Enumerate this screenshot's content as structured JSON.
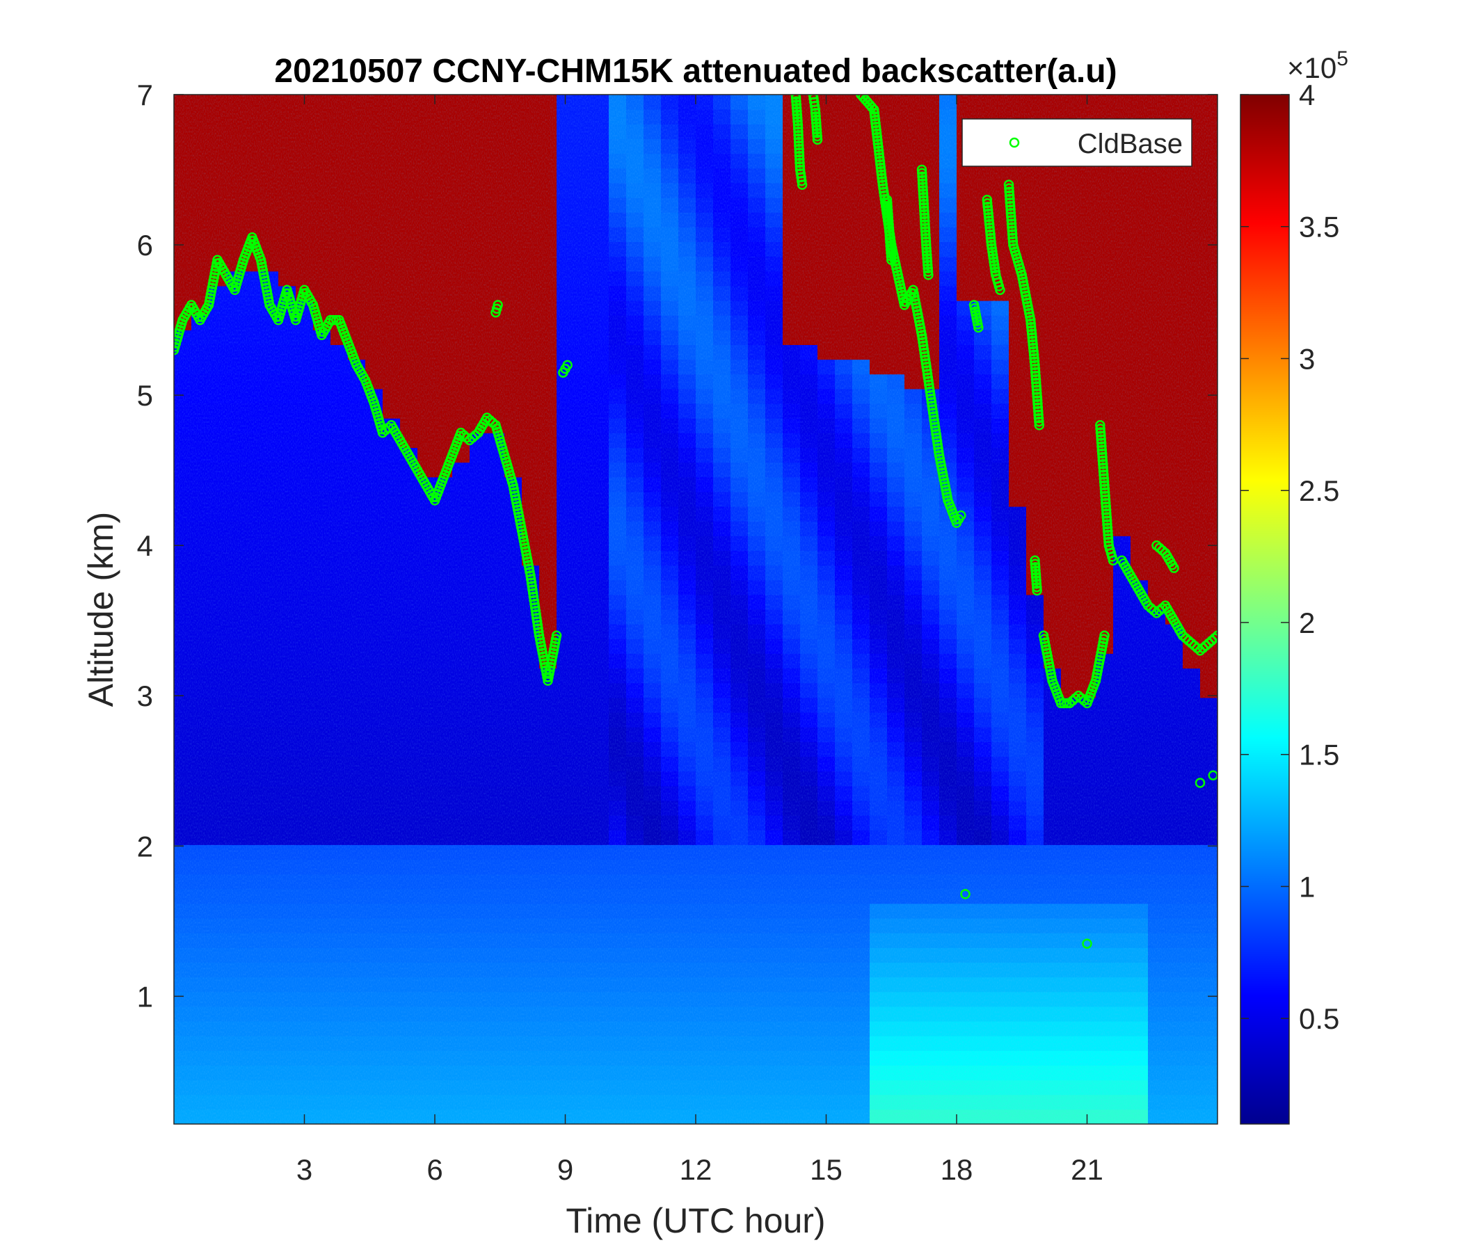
{
  "chart_data": {
    "type": "heatmap",
    "title": "20210507 CCNY-CHM15K attenuated backscatter(a.u)",
    "xlabel": "Time (UTC hour)",
    "ylabel": "Altitude (km)",
    "xlim": [
      0,
      24
    ],
    "ylim": [
      0.15,
      7
    ],
    "xticks": [
      3,
      6,
      9,
      12,
      15,
      18,
      21
    ],
    "yticks": [
      1,
      2,
      3,
      4,
      5,
      6,
      7
    ],
    "colorbar": {
      "colormap": "jet",
      "clim": [
        0.1,
        4
      ],
      "ticks": [
        0.5,
        1,
        1.5,
        2,
        2.5,
        3,
        3.5,
        4
      ],
      "multiplier_base": "×10",
      "multiplier_exponent": "5"
    },
    "legend": {
      "location": "top-right",
      "entries": [
        "CldBase"
      ]
    },
    "series": [
      {
        "name": "CldBase",
        "type": "scatter",
        "marker": "circle",
        "color": "#00ff00",
        "segments": [
          [
            [
              0.0,
              5.3
            ],
            [
              0.2,
              5.5
            ],
            [
              0.4,
              5.6
            ],
            [
              0.6,
              5.5
            ],
            [
              0.8,
              5.6
            ],
            [
              1.0,
              5.9
            ],
            [
              1.2,
              5.8
            ],
            [
              1.4,
              5.7
            ],
            [
              1.6,
              5.9
            ],
            [
              1.8,
              6.05
            ],
            [
              2.0,
              5.9
            ],
            [
              2.2,
              5.6
            ],
            [
              2.4,
              5.5
            ],
            [
              2.6,
              5.7
            ],
            [
              2.8,
              5.5
            ],
            [
              3.0,
              5.7
            ],
            [
              3.2,
              5.6
            ],
            [
              3.4,
              5.4
            ],
            [
              3.6,
              5.5
            ],
            [
              3.8,
              5.5
            ],
            [
              4.0,
              5.35
            ],
            [
              4.2,
              5.2
            ],
            [
              4.4,
              5.1
            ],
            [
              4.6,
              4.95
            ],
            [
              4.8,
              4.75
            ],
            [
              5.0,
              4.8
            ],
            [
              5.2,
              4.7
            ],
            [
              5.4,
              4.6
            ],
            [
              5.6,
              4.5
            ],
            [
              5.8,
              4.4
            ],
            [
              6.0,
              4.3
            ],
            [
              6.2,
              4.45
            ],
            [
              6.4,
              4.6
            ],
            [
              6.6,
              4.75
            ],
            [
              6.8,
              4.7
            ],
            [
              7.0,
              4.75
            ],
            [
              7.2,
              4.85
            ],
            [
              7.4,
              4.8
            ],
            [
              7.6,
              4.6
            ],
            [
              7.8,
              4.4
            ],
            [
              8.0,
              4.1
            ],
            [
              8.2,
              3.8
            ],
            [
              8.4,
              3.4
            ],
            [
              8.6,
              3.1
            ],
            [
              8.8,
              3.4
            ]
          ],
          [
            [
              8.95,
              5.15
            ],
            [
              9.05,
              5.2
            ]
          ],
          [
            [
              7.4,
              5.55
            ],
            [
              7.45,
              5.6
            ]
          ],
          [
            [
              14.3,
              7.0
            ],
            [
              14.35,
              6.8
            ],
            [
              14.4,
              6.5
            ],
            [
              14.45,
              6.4
            ]
          ],
          [
            [
              14.7,
              7.0
            ],
            [
              14.75,
              6.9
            ],
            [
              14.8,
              6.7
            ]
          ],
          [
            [
              15.8,
              7.0
            ],
            [
              16.1,
              6.9
            ],
            [
              16.3,
              6.4
            ],
            [
              16.5,
              6.0
            ],
            [
              16.8,
              5.6
            ],
            [
              17.0,
              5.7
            ],
            [
              17.2,
              5.4
            ],
            [
              17.4,
              5.0
            ],
            [
              17.6,
              4.6
            ],
            [
              17.8,
              4.3
            ],
            [
              18.0,
              4.15
            ],
            [
              18.1,
              4.2
            ]
          ],
          [
            [
              16.4,
              6.3
            ],
            [
              16.5,
              5.9
            ]
          ],
          [
            [
              17.2,
              6.5
            ],
            [
              17.3,
              6.0
            ],
            [
              17.35,
              5.8
            ]
          ],
          [
            [
              18.7,
              6.3
            ],
            [
              18.8,
              6.0
            ],
            [
              18.9,
              5.8
            ],
            [
              19.0,
              5.7
            ]
          ],
          [
            [
              19.2,
              6.4
            ],
            [
              19.3,
              6.0
            ],
            [
              19.5,
              5.8
            ],
            [
              19.7,
              5.5
            ],
            [
              19.8,
              5.2
            ],
            [
              19.9,
              4.8
            ]
          ],
          [
            [
              18.4,
              5.6
            ],
            [
              18.5,
              5.45
            ]
          ],
          [
            [
              19.8,
              3.9
            ],
            [
              19.85,
              3.7
            ]
          ],
          [
            [
              20.0,
              3.4
            ],
            [
              20.2,
              3.1
            ],
            [
              20.4,
              2.95
            ],
            [
              20.6,
              2.95
            ],
            [
              20.8,
              3.0
            ],
            [
              21.0,
              2.95
            ],
            [
              21.2,
              3.1
            ],
            [
              21.4,
              3.4
            ]
          ],
          [
            [
              21.3,
              4.8
            ],
            [
              21.4,
              4.4
            ],
            [
              21.5,
              4.0
            ],
            [
              21.6,
              3.9
            ]
          ],
          [
            [
              21.8,
              3.9
            ],
            [
              22.0,
              3.8
            ],
            [
              22.2,
              3.7
            ],
            [
              22.4,
              3.6
            ],
            [
              22.6,
              3.55
            ],
            [
              22.8,
              3.6
            ],
            [
              23.0,
              3.5
            ],
            [
              23.2,
              3.4
            ],
            [
              23.4,
              3.35
            ],
            [
              23.6,
              3.3
            ],
            [
              23.8,
              3.35
            ],
            [
              24.0,
              3.4
            ]
          ],
          [
            [
              22.6,
              4.0
            ],
            [
              22.8,
              3.95
            ],
            [
              23.0,
              3.85
            ]
          ],
          [
            [
              18.2,
              1.68
            ]
          ],
          [
            [
              21.0,
              1.35
            ]
          ],
          [
            [
              23.6,
              2.42
            ]
          ],
          [
            [
              23.9,
              2.47
            ]
          ]
        ]
      }
    ]
  }
}
